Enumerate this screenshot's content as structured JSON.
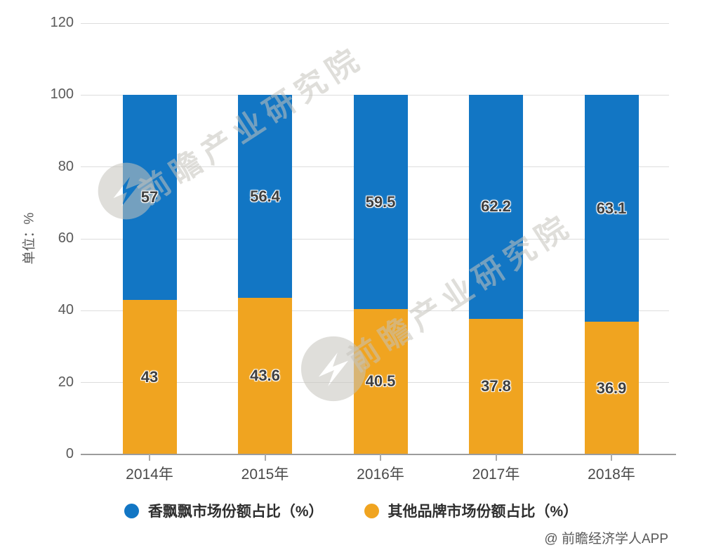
{
  "chart_data": {
    "type": "bar",
    "stacked": true,
    "categories": [
      "2014年",
      "2015年",
      "2016年",
      "2017年",
      "2018年"
    ],
    "series": [
      {
        "name": "香飘飘市场份额占比（%）",
        "color": "#1276C4",
        "values": [
          57,
          56.4,
          59.5,
          62.2,
          63.1
        ],
        "stack_position": "top"
      },
      {
        "name": "其他品牌市场份额占比（%）",
        "color": "#F0A420",
        "values": [
          43,
          43.6,
          40.5,
          37.8,
          36.9
        ],
        "stack_position": "bottom"
      }
    ],
    "title": "",
    "xlabel": "",
    "ylabel": "单位：%",
    "ylim": [
      0,
      120
    ],
    "yticks": [
      0,
      20,
      40,
      60,
      80,
      100,
      120
    ],
    "grid": true,
    "legend_position": "bottom"
  },
  "colors": {
    "gridline": "#DDDDDD",
    "axis": "#9C9C9C",
    "tick": "#ABABAB",
    "ytick_label": "#595959",
    "xtick_label": "#4A4A4A",
    "value_label": "#3F3F3F"
  },
  "watermark": {
    "text": "前瞻产业研究院"
  },
  "footer": {
    "attribution": "@ 前瞻经济学人APP"
  }
}
